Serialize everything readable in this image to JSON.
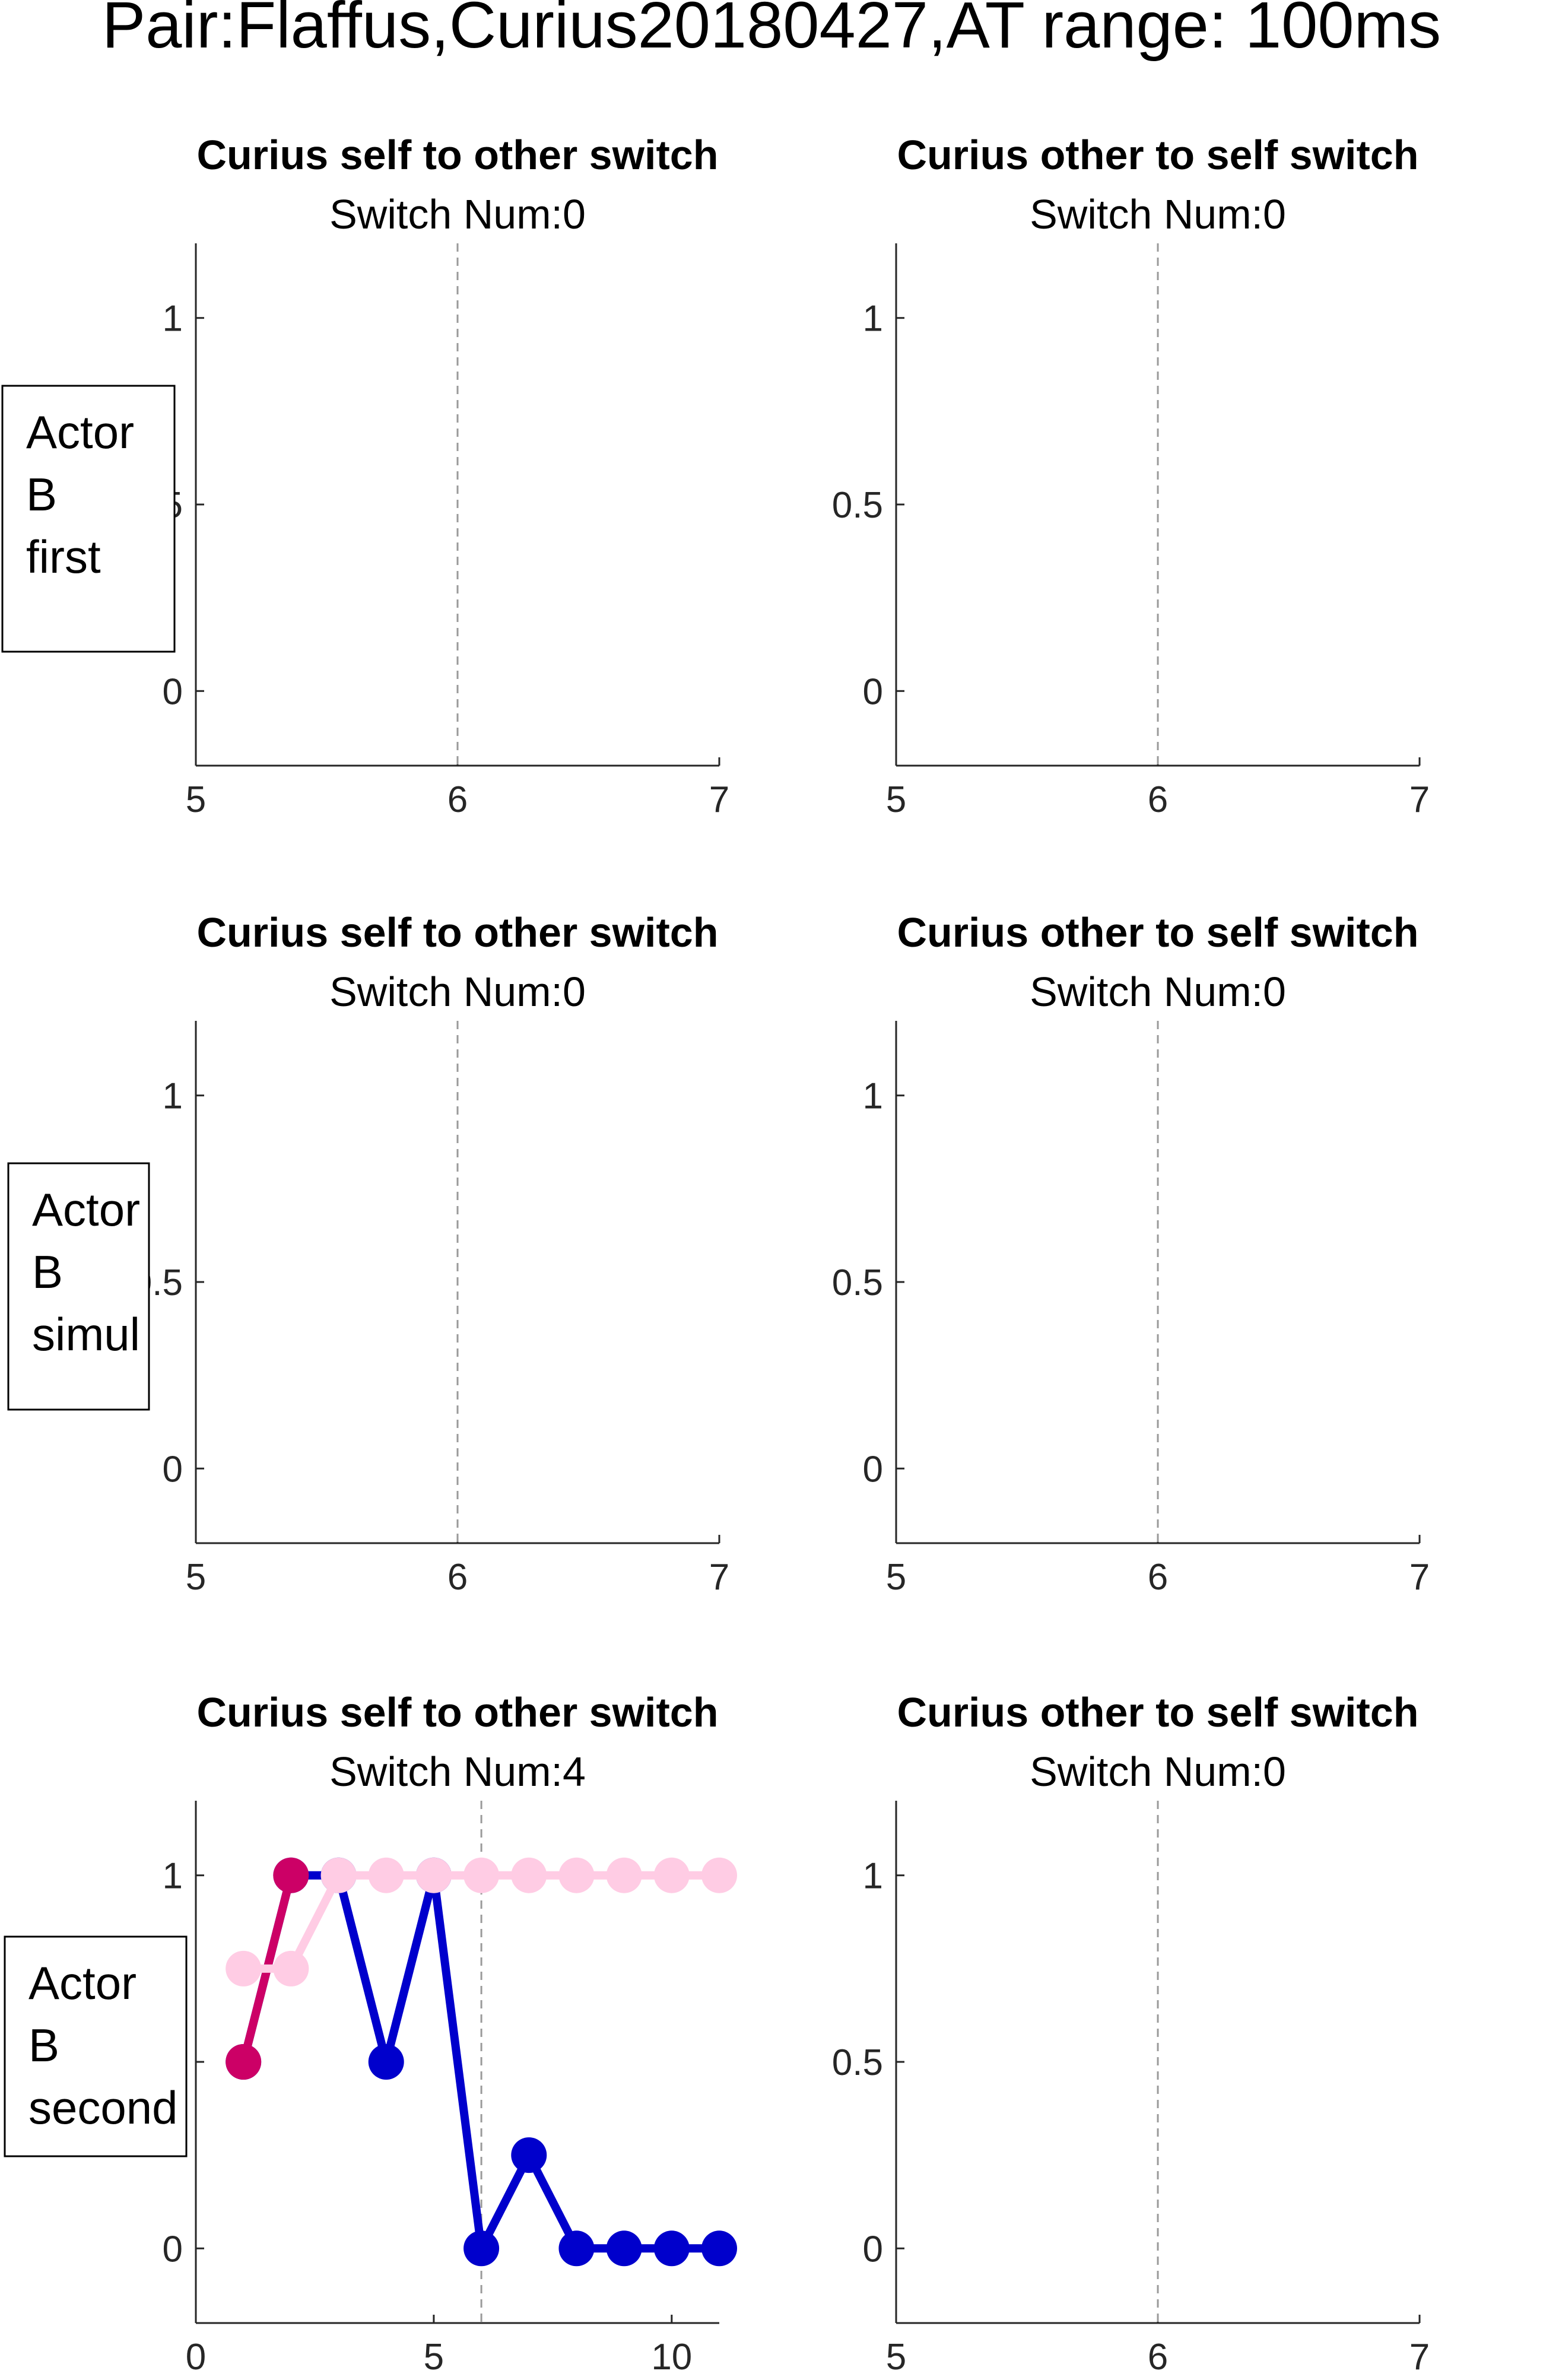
{
  "figure": {
    "suptitle": "Pair:Flaffus,Curius20180427,AT range: 100ms"
  },
  "colors": {
    "dark_pink": "#cc0066",
    "light_pink": "#ffcce4",
    "blue": "#0000cc",
    "axis": "#262626",
    "guide": "#9a9a9a"
  },
  "row_labels": [
    [
      "Actor",
      "B",
      "first"
    ],
    [
      "Actor",
      "B",
      "simul"
    ],
    [
      "Actor",
      "B",
      "second"
    ]
  ],
  "chart_data": [
    {
      "type": "line",
      "title": "Curius self to other switch",
      "subtitle": "Switch Num:0",
      "xlim": [
        5,
        7
      ],
      "ylim": [
        -0.2,
        1.2
      ],
      "xticks": [
        5,
        6,
        7
      ],
      "yticks": [
        0,
        0.5,
        1
      ],
      "vline": 6,
      "series": []
    },
    {
      "type": "line",
      "title": "Curius other to self switch",
      "subtitle": "Switch Num:0",
      "xlim": [
        5,
        7
      ],
      "ylim": [
        -0.2,
        1.2
      ],
      "xticks": [
        5,
        6,
        7
      ],
      "yticks": [
        0,
        0.5,
        1
      ],
      "vline": 6,
      "series": []
    },
    {
      "type": "line",
      "title": "Curius self to other switch",
      "subtitle": "Switch Num:0",
      "xlim": [
        5,
        7
      ],
      "ylim": [
        -0.2,
        1.2
      ],
      "xticks": [
        5,
        6,
        7
      ],
      "yticks": [
        0,
        0.5,
        1
      ],
      "vline": 6,
      "series": []
    },
    {
      "type": "line",
      "title": "Curius other to self switch",
      "subtitle": "Switch Num:0",
      "xlim": [
        5,
        7
      ],
      "ylim": [
        -0.2,
        1.2
      ],
      "xticks": [
        5,
        6,
        7
      ],
      "yticks": [
        0,
        0.5,
        1
      ],
      "vline": 6,
      "series": []
    },
    {
      "type": "line",
      "title": "Curius self to other switch",
      "subtitle": "Switch Num:4",
      "xlim": [
        0,
        11
      ],
      "ylim": [
        -0.2,
        1.2
      ],
      "xticks": [
        0,
        5,
        10
      ],
      "yticks": [
        0,
        0.5,
        1
      ],
      "vline": 6,
      "series": [
        {
          "color": "#0000cc",
          "x": [
            1,
            2,
            3,
            4,
            5,
            6,
            7,
            8,
            9,
            10,
            11
          ],
          "y": [
            0.5,
            1,
            1,
            0.5,
            1,
            0,
            0.25,
            0,
            0,
            0,
            0
          ]
        },
        {
          "color": "#cc0066",
          "x": [
            1,
            2
          ],
          "y": [
            0.5,
            1
          ]
        },
        {
          "color": "#ffcce4",
          "x": [
            1,
            2,
            3,
            4,
            5,
            6,
            7,
            8,
            9,
            10,
            11
          ],
          "y": [
            0.75,
            0.75,
            1,
            1,
            1,
            1,
            1,
            1,
            1,
            1,
            1
          ]
        }
      ]
    },
    {
      "type": "line",
      "title": "Curius other to self switch",
      "subtitle": "Switch Num:0",
      "xlim": [
        5,
        7
      ],
      "ylim": [
        -0.2,
        1.2
      ],
      "xticks": [
        5,
        6,
        7
      ],
      "yticks": [
        0,
        0.5,
        1
      ],
      "vline": 6,
      "series": []
    }
  ]
}
